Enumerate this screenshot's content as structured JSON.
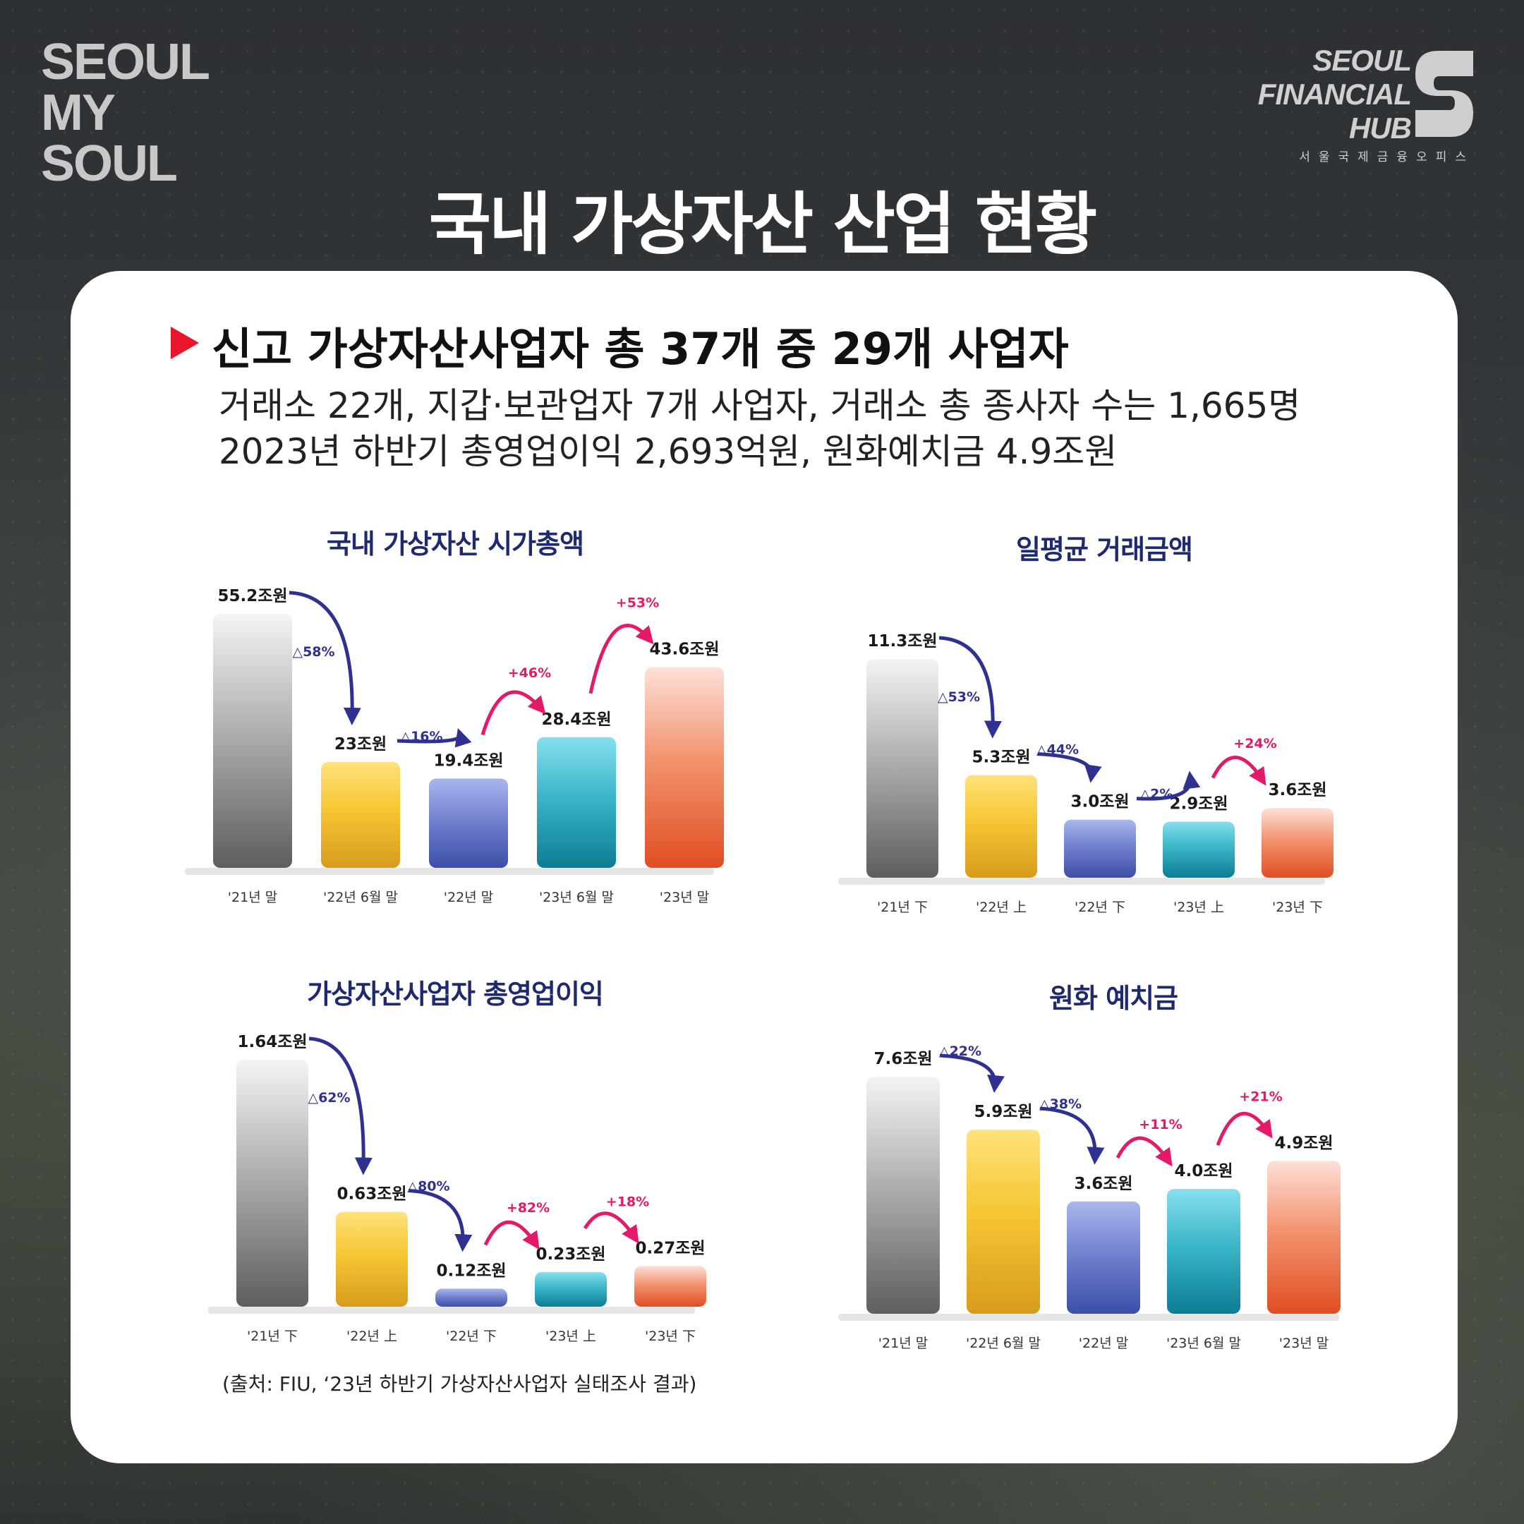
{
  "logo_left": {
    "line1": "SEOUL",
    "line2": "MY SOUL"
  },
  "logo_right": {
    "line1": "SEOUL",
    "line2": "FINANCIAL",
    "line3": "HUB",
    "sub": "서울국제금융오피스"
  },
  "title": "국내 가상자산 산업 현황",
  "headline": "신고 가상자산사업자 총 37개 중 29개 사업자",
  "sub_lines": [
    "거래소 22개, 지갑·보관업자 7개 사업자, 거래소 총 종사자 수는 1,665명",
    "2023년 하반기 총영업이익 2,693억원, 원화예치금 4.9조원"
  ],
  "source": "(출처: FIU, ‘23년 하반기 가상자산사업자 실태조사 결과)",
  "colors": {
    "accent": "#e8152b",
    "title_navy": "#1f2a6e",
    "decrease_arrow": "#2e3192",
    "increase_arrow": "#e5196a"
  },
  "chart_data": [
    {
      "type": "bar",
      "title": "국내 가상자산 시가총액",
      "categories": [
        "'21년 말",
        "'22년 6월 말",
        "'22년 말",
        "'23년 6월 말",
        "'23년 말"
      ],
      "values": [
        55.2,
        23,
        19.4,
        28.4,
        43.6
      ],
      "labels": [
        "55.2조원",
        "23조원",
        "19.4조원",
        "28.4조원",
        "43.6조원"
      ],
      "unit": "조원",
      "changes": [
        {
          "from": 0,
          "to": 1,
          "label": "△58%",
          "dir": "down"
        },
        {
          "from": 1,
          "to": 2,
          "label": "△16%",
          "dir": "down"
        },
        {
          "from": 2,
          "to": 3,
          "label": "+46%",
          "dir": "up"
        },
        {
          "from": 3,
          "to": 4,
          "label": "+53%",
          "dir": "up"
        }
      ]
    },
    {
      "type": "bar",
      "title": "일평균 거래금액",
      "categories": [
        "'21년 下",
        "'22년 上",
        "'22년 下",
        "'23년 上",
        "'23년 下"
      ],
      "values": [
        11.3,
        5.3,
        3.0,
        2.9,
        3.6
      ],
      "labels": [
        "11.3조원",
        "5.3조원",
        "3.0조원",
        "2.9조원",
        "3.6조원"
      ],
      "unit": "조원",
      "changes": [
        {
          "from": 0,
          "to": 1,
          "label": "△53%",
          "dir": "down"
        },
        {
          "from": 1,
          "to": 2,
          "label": "△44%",
          "dir": "down"
        },
        {
          "from": 2,
          "to": 3,
          "label": "△2%",
          "dir": "down"
        },
        {
          "from": 3,
          "to": 4,
          "label": "+24%",
          "dir": "up"
        }
      ]
    },
    {
      "type": "bar",
      "title": "가상자산사업자 총영업이익",
      "categories": [
        "'21년 下",
        "'22년 上",
        "'22년 下",
        "'23년 上",
        "'23년 下"
      ],
      "values": [
        1.64,
        0.63,
        0.12,
        0.23,
        0.27
      ],
      "labels": [
        "1.64조원",
        "0.63조원",
        "0.12조원",
        "0.23조원",
        "0.27조원"
      ],
      "unit": "조원",
      "changes": [
        {
          "from": 0,
          "to": 1,
          "label": "△62%",
          "dir": "down"
        },
        {
          "from": 1,
          "to": 2,
          "label": "△80%",
          "dir": "down"
        },
        {
          "from": 2,
          "to": 3,
          "label": "+82%",
          "dir": "up"
        },
        {
          "from": 3,
          "to": 4,
          "label": "+18%",
          "dir": "up"
        }
      ]
    },
    {
      "type": "bar",
      "title": "원화 예치금",
      "categories": [
        "'21년 말",
        "'22년 6월 말",
        "'22년 말",
        "'23년 6월 말",
        "'23년 말"
      ],
      "values": [
        7.6,
        5.9,
        3.6,
        4.0,
        4.9
      ],
      "labels": [
        "7.6조원",
        "5.9조원",
        "3.6조원",
        "4.0조원",
        "4.9조원"
      ],
      "unit": "조원",
      "changes": [
        {
          "from": 0,
          "to": 1,
          "label": "△22%",
          "dir": "down"
        },
        {
          "from": 1,
          "to": 2,
          "label": "△38%",
          "dir": "down"
        },
        {
          "from": 2,
          "to": 3,
          "label": "+11%",
          "dir": "up"
        },
        {
          "from": 3,
          "to": 4,
          "label": "+21%",
          "dir": "up"
        }
      ]
    }
  ]
}
